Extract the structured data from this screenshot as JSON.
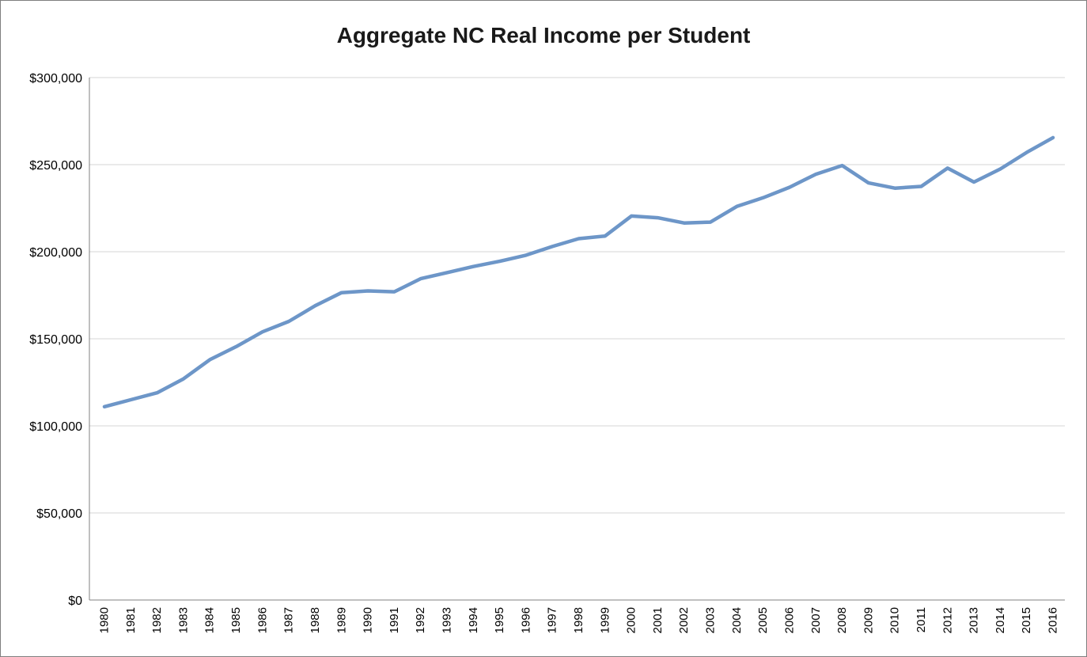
{
  "chart_data": {
    "type": "line",
    "title": "Aggregate NC Real Income per Student",
    "xlabel": "",
    "ylabel": "",
    "ylim": [
      0,
      300000
    ],
    "grid": "horizontal",
    "legend": "none",
    "categories": [
      "1980",
      "1981",
      "1982",
      "1983",
      "1984",
      "1985",
      "1986",
      "1987",
      "1988",
      "1989",
      "1990",
      "1991",
      "1992",
      "1993",
      "1994",
      "1995",
      "1996",
      "1997",
      "1998",
      "1999",
      "2000",
      "2001",
      "2002",
      "2003",
      "2004",
      "2005",
      "2006",
      "2007",
      "2008",
      "2009",
      "2010",
      "2011",
      "2012",
      "2013",
      "2014",
      "2015",
      "2016"
    ],
    "series": [
      {
        "name": "Aggregate NC Real Income per Student",
        "values": [
          111000,
          115000,
          119000,
          127000,
          138000,
          145500,
          154000,
          160000,
          169000,
          176500,
          177500,
          177000,
          184500,
          188000,
          191500,
          194500,
          198000,
          203000,
          207500,
          209000,
          220500,
          219500,
          216500,
          217000,
          226000,
          231000,
          237000,
          244500,
          249500,
          239500,
          236500,
          237500,
          248000,
          240000,
          247500,
          257000,
          265500
        ]
      }
    ],
    "y_ticks": {
      "values": [
        0,
        50000,
        100000,
        150000,
        200000,
        250000,
        300000
      ],
      "labels": [
        "$0",
        "$50,000",
        "$100,000",
        "$150,000",
        "$200,000",
        "$250,000",
        "$300,000"
      ]
    },
    "colors": {
      "line": "#6D96C8",
      "gridline": "#D6D6D6",
      "axis": "#808080",
      "text": "#000000",
      "title": "#1A1A1A"
    }
  }
}
